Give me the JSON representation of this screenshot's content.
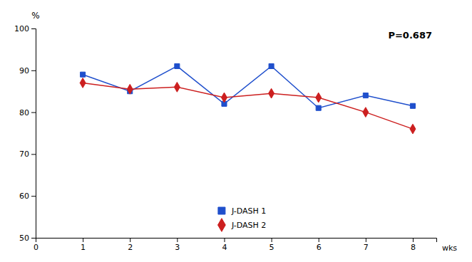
{
  "chart_data": {
    "type": "line",
    "x": [
      1,
      2,
      3,
      4,
      5,
      6,
      7,
      8
    ],
    "series": [
      {
        "name": "J-DASH 1",
        "color": "#1f4fcc",
        "marker": "square",
        "values": [
          89,
          85,
          91,
          82,
          91,
          81,
          84,
          81.5
        ]
      },
      {
        "name": "J-DASH 2",
        "color": "#cc1f1f",
        "marker": "diamond",
        "values": [
          87,
          85.5,
          86,
          83.5,
          84.5,
          83.5,
          80,
          76
        ]
      }
    ],
    "xlabel": "wks",
    "ylabel": "%",
    "annotations": [
      "P=0.687"
    ],
    "xlim": [
      0,
      8.5
    ],
    "ylim": [
      50,
      100
    ],
    "xticks": [
      0,
      1,
      2,
      3,
      4,
      5,
      6,
      7,
      8
    ],
    "yticks": [
      50,
      60,
      70,
      80,
      90,
      100
    ],
    "grid": false,
    "legend": "bottom"
  }
}
